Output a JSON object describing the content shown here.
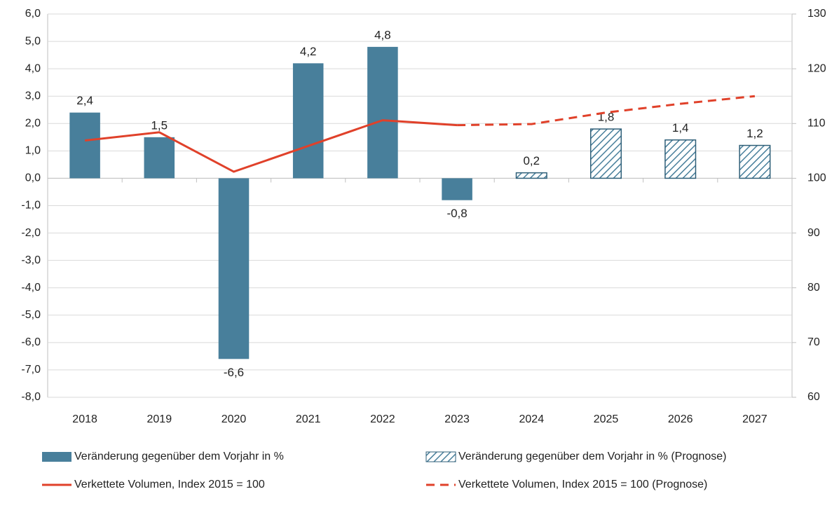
{
  "chart_data": {
    "type": "bar",
    "categories": [
      "2018",
      "2019",
      "2020",
      "2021",
      "2022",
      "2023",
      "2024",
      "2025",
      "2026",
      "2027"
    ],
    "series": [
      {
        "name": "Veränderung gegenüber dem Vorjahr in %",
        "type": "bar",
        "color": "#487f9b",
        "pattern": "solid",
        "values": [
          2.4,
          1.5,
          -6.6,
          4.2,
          4.8,
          -0.8,
          null,
          null,
          null,
          null
        ],
        "value_labels": [
          "2,4",
          "1,5",
          "-6,6",
          "4,2",
          "4,8",
          "-0,8",
          null,
          null,
          null,
          null
        ]
      },
      {
        "name": "Veränderung gegenüber dem Vorjahr in % (Prognose)",
        "type": "bar",
        "color": "#487f9b",
        "pattern": "hatched",
        "values": [
          null,
          null,
          null,
          null,
          null,
          null,
          0.2,
          1.8,
          1.4,
          1.2
        ],
        "value_labels": [
          null,
          null,
          null,
          null,
          null,
          null,
          "0,2",
          "1,8",
          "1,4",
          "1,2"
        ]
      },
      {
        "name": "Verkettete Volumen, Index 2015 = 100",
        "type": "line",
        "axis": "y2",
        "color": "#e0412a",
        "dash": "solid",
        "values": [
          106.9,
          108.4,
          101.2,
          105.9,
          110.6,
          109.7,
          null,
          null,
          null,
          null
        ]
      },
      {
        "name": "Verkettete Volumen, Index 2015 = 100 (Prognose)",
        "type": "line",
        "axis": "y2",
        "color": "#e0412a",
        "dash": "dashed",
        "values": [
          null,
          null,
          null,
          null,
          null,
          109.7,
          109.9,
          112.0,
          113.6,
          115.0
        ]
      }
    ],
    "ylim": [
      -8,
      6
    ],
    "yticks": [
      {
        "value": -8,
        "label": "-8,0"
      },
      {
        "value": -7,
        "label": "-7,0"
      },
      {
        "value": -6,
        "label": "-6,0"
      },
      {
        "value": -5,
        "label": "-5,0"
      },
      {
        "value": -4,
        "label": "-4,0"
      },
      {
        "value": -3,
        "label": "-3,0"
      },
      {
        "value": -2,
        "label": "-2,0"
      },
      {
        "value": -1,
        "label": "-1,0"
      },
      {
        "value": 0,
        "label": "0,0"
      },
      {
        "value": 1,
        "label": "1,0"
      },
      {
        "value": 2,
        "label": "2,0"
      },
      {
        "value": 3,
        "label": "3,0"
      },
      {
        "value": 4,
        "label": "4,0"
      },
      {
        "value": 5,
        "label": "5,0"
      },
      {
        "value": 6,
        "label": "6,0"
      }
    ],
    "y2lim": [
      60,
      130
    ],
    "y2ticks": [
      60,
      70,
      80,
      90,
      100,
      110,
      120,
      130
    ],
    "grid": true,
    "legend": "bottom"
  }
}
